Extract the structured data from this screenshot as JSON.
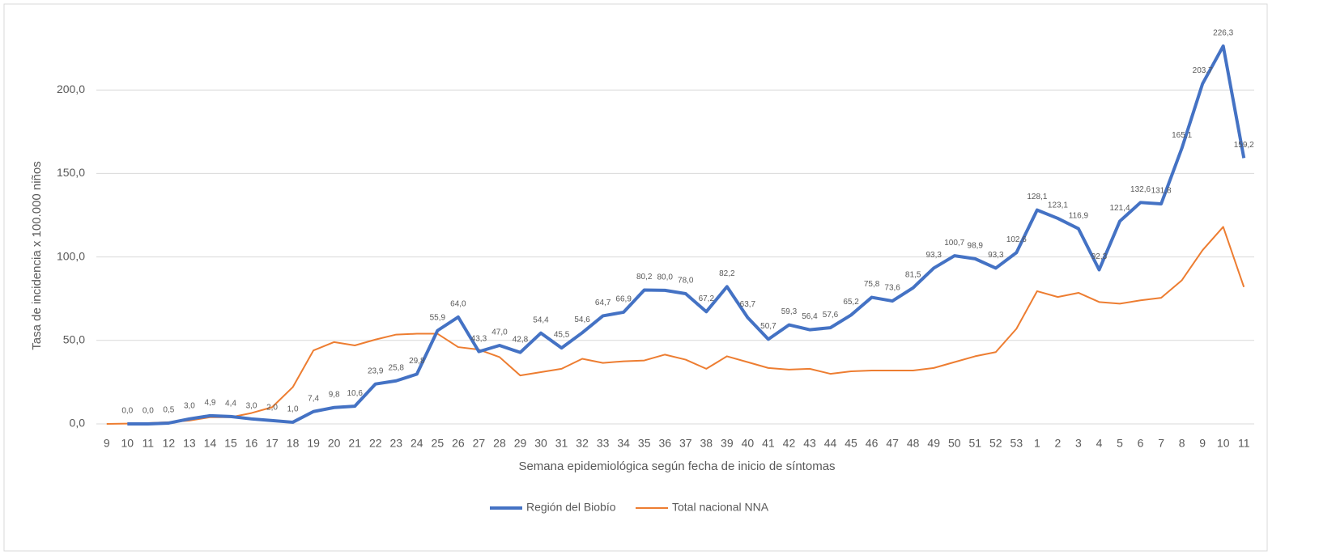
{
  "chart_data": {
    "type": "line",
    "y_label": "Tasa de incidencia x 100.000 niños",
    "x_label": "Semana epidemiológica según fecha de inicio de síntomas",
    "categories": [
      "9",
      "10",
      "11",
      "12",
      "13",
      "14",
      "15",
      "16",
      "17",
      "18",
      "19",
      "20",
      "21",
      "22",
      "23",
      "24",
      "25",
      "26",
      "27",
      "28",
      "29",
      "30",
      "31",
      "32",
      "33",
      "34",
      "35",
      "36",
      "37",
      "38",
      "39",
      "40",
      "41",
      "42",
      "43",
      "44",
      "45",
      "46",
      "47",
      "48",
      "49",
      "50",
      "51",
      "52",
      "53",
      "1",
      "2",
      "3",
      "4",
      "5",
      "6",
      "7",
      "8",
      "9",
      "10",
      "11"
    ],
    "series": [
      {
        "name": "Región del Biobío",
        "color": "#4472c4",
        "values": [
          null,
          0.0,
          0.0,
          0.5,
          3.0,
          4.9,
          4.4,
          3.0,
          2.0,
          1.0,
          7.4,
          9.8,
          10.6,
          23.9,
          25.8,
          29.8,
          55.9,
          64.0,
          43.3,
          47.0,
          42.8,
          54.4,
          45.5,
          54.6,
          64.7,
          66.9,
          80.2,
          80.0,
          78.0,
          67.2,
          82.2,
          63.7,
          50.7,
          59.3,
          56.4,
          57.6,
          65.2,
          75.8,
          73.6,
          81.5,
          93.3,
          100.7,
          98.9,
          93.3,
          102.6,
          128.1,
          123.1,
          116.9,
          92.3,
          121.4,
          132.6,
          131.8,
          165.1,
          203.7,
          226.3,
          159.2
        ],
        "value_labels": [
          null,
          "0,0",
          "0,0",
          "0,5",
          "3,0",
          "4,9",
          "4,4",
          "3,0",
          "2,0",
          "1,0",
          "7,4",
          "9,8",
          "10,6",
          "23,9",
          "25,8",
          "29,8",
          "55,9",
          "64,0",
          "43,3",
          "47,0",
          "42,8",
          "54,4",
          "45,5",
          "54,6",
          "64,7",
          "66,9",
          "80,2",
          "80,0",
          "78,0",
          "67,2",
          "82,2",
          "63,7",
          "50,7",
          "59,3",
          "56,4",
          "57,6",
          "65,2",
          "75,8",
          "73,6",
          "81,5",
          "93,3",
          "100,7",
          "98,9",
          "93,3",
          "102,6",
          "128,1",
          "123,1",
          "116,9",
          "92,3",
          "121,4",
          "132,6",
          "131,8",
          "165,1",
          "203,7",
          "226,3",
          "159,2"
        ]
      },
      {
        "name": "Total nacional NNA",
        "color": "#ed7d31",
        "values": [
          0,
          0.2,
          0.5,
          1,
          2,
          4,
          4,
          6.5,
          10,
          22,
          44,
          49,
          47,
          50.5,
          53.5,
          54,
          54,
          46,
          44.5,
          40,
          29,
          31,
          33,
          39,
          36.5,
          37.5,
          38,
          41.5,
          38.5,
          33,
          40.5,
          37,
          33.5,
          32.5,
          33,
          30,
          31.5,
          32,
          32,
          32,
          33.5,
          37,
          40.5,
          43,
          57,
          79.5,
          76,
          78.5,
          73,
          72,
          74,
          75.5,
          86,
          104,
          118,
          82
        ]
      }
    ],
    "ylim": [
      0,
      250
    ],
    "yticks": [
      {
        "value": 0,
        "label": "0,0"
      },
      {
        "value": 50,
        "label": "50,0"
      },
      {
        "value": 100,
        "label": "100,0"
      },
      {
        "value": 150,
        "label": "150,0"
      },
      {
        "value": 200,
        "label": "200,0"
      }
    ],
    "grid": true
  }
}
